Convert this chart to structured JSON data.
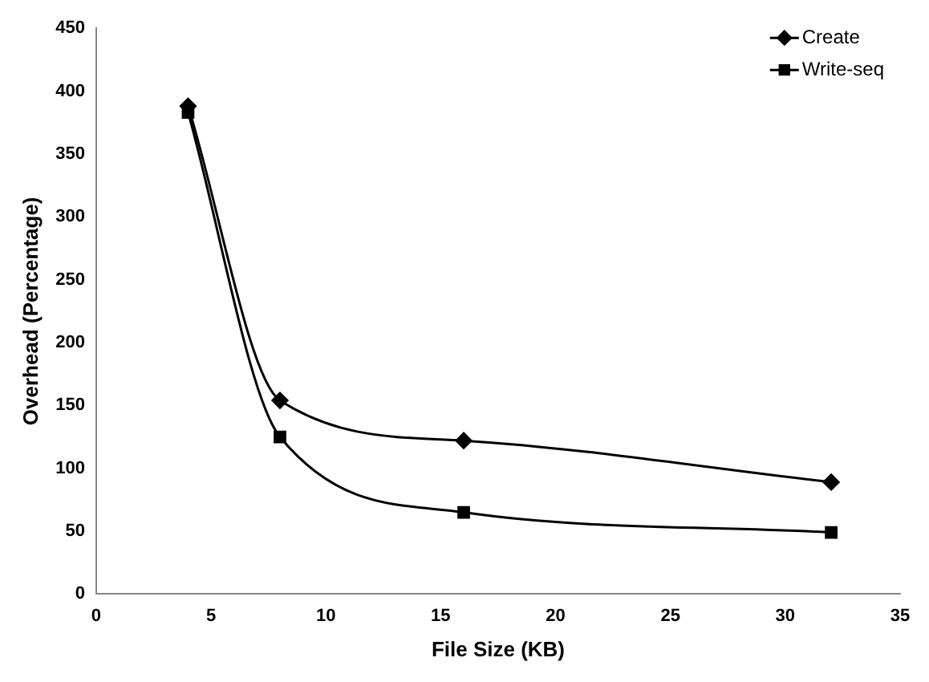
{
  "chart_data": {
    "type": "line",
    "xlabel": "File Size (KB)",
    "ylabel": "Overhead (Percentage)",
    "xlim": [
      0,
      35
    ],
    "xticks": [
      0,
      5,
      10,
      15,
      20,
      25,
      30,
      35
    ],
    "ylim": [
      0,
      450
    ],
    "yticks": [
      0,
      50,
      100,
      150,
      200,
      250,
      300,
      350,
      400,
      450
    ],
    "grid": false,
    "legend": "top right",
    "line_style": "solid",
    "series": [
      {
        "name": "Create",
        "color": "#000000",
        "marker": "diamond",
        "x": [
          4,
          8,
          16,
          32
        ],
        "values": [
          388,
          154,
          122,
          89
        ]
      },
      {
        "name": "Write-seq",
        "color": "#000000",
        "marker": "square",
        "x": [
          4,
          8,
          16,
          32
        ],
        "values": [
          383,
          125,
          65,
          49
        ]
      }
    ]
  }
}
